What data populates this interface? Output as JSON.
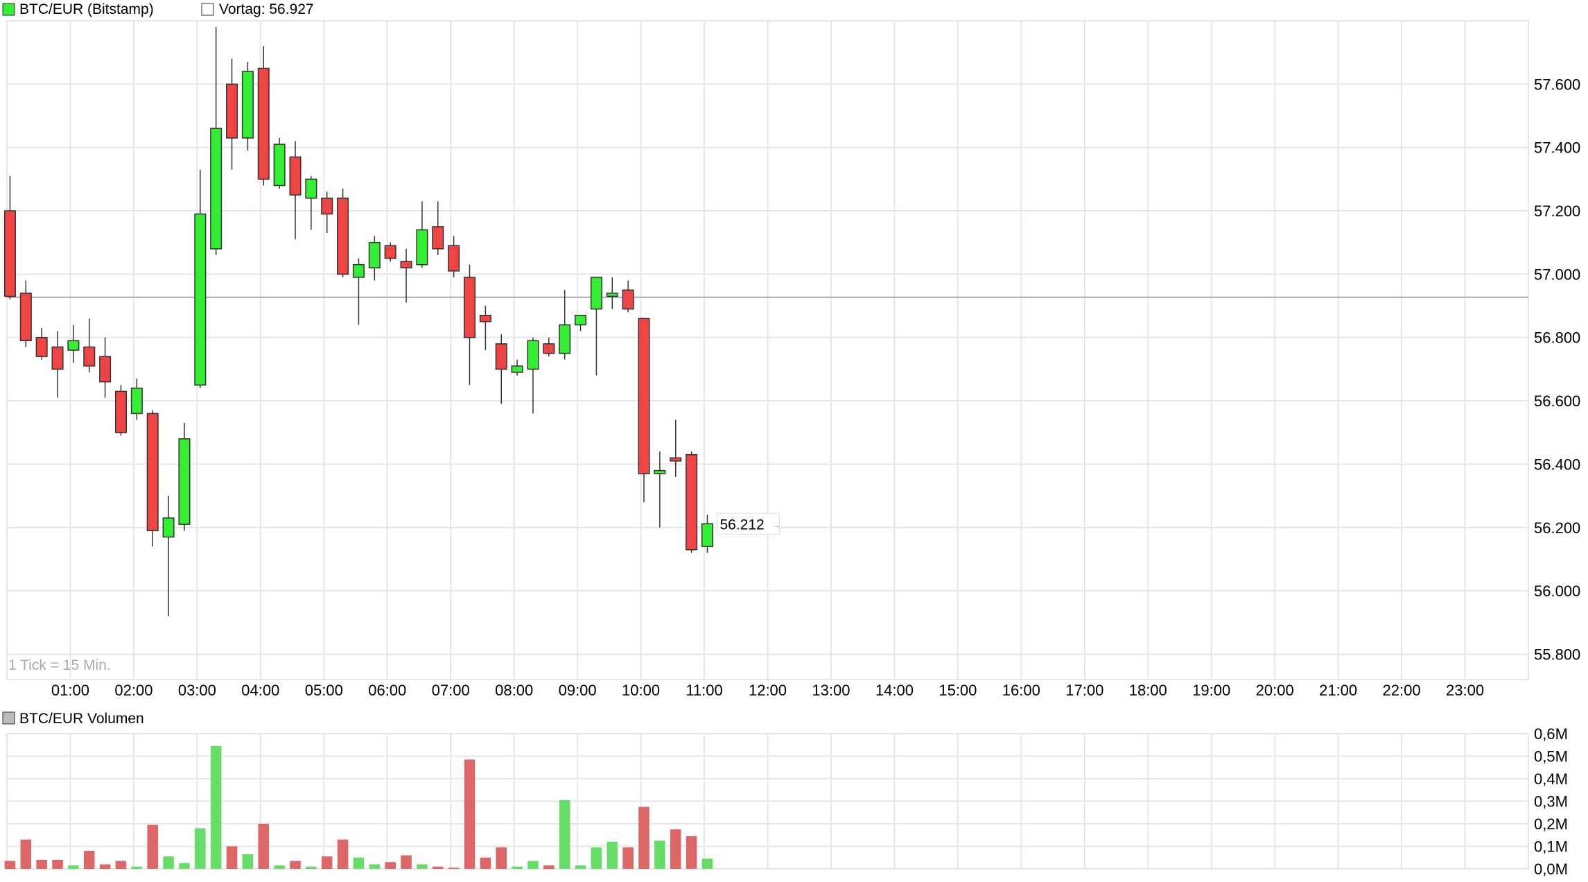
{
  "price_panel": {
    "legend_label": "BTC/EUR (Bitstamp)",
    "prev_close_label": "Vortag: 56.927",
    "tick_note": "1 Tick = 15 Min."
  },
  "volume_panel": {
    "legend_label": "BTC/EUR Volumen"
  },
  "colors": {
    "up": "#33ee33",
    "down": "#ee4444",
    "vol_up": "#66dd66",
    "vol_down": "#dd6666",
    "grid": "#e6e6e6",
    "prev_close_line": "#aaaaaa"
  },
  "chart_data": [
    {
      "type": "candlestick",
      "title": "BTC/EUR (Bitstamp)",
      "interval": "15 Min.",
      "x_ticks": [
        "01:00",
        "02:00",
        "03:00",
        "04:00",
        "05:00",
        "06:00",
        "07:00",
        "08:00",
        "09:00",
        "10:00",
        "11:00",
        "12:00",
        "13:00",
        "14:00",
        "15:00",
        "16:00",
        "17:00",
        "18:00",
        "19:00",
        "20:00",
        "21:00",
        "22:00",
        "23:00"
      ],
      "y_ticks": [
        "57.600",
        "57.400",
        "57.200",
        "57.000",
        "56.800",
        "56.600",
        "56.400",
        "56.200",
        "56.000",
        "55.800"
      ],
      "y_tick_values": [
        57600,
        57400,
        57200,
        57000,
        56800,
        56600,
        56400,
        56200,
        56000,
        55800
      ],
      "ylim": [
        55720,
        57800
      ],
      "x_range_hours": [
        0,
        24
      ],
      "prev_close": 56927,
      "last_price_label": "56.212",
      "candles": [
        {
          "t": "00:00",
          "o": 57200,
          "h": 57310,
          "l": 56920,
          "c": 56930
        },
        {
          "t": "00:15",
          "o": 56940,
          "h": 56980,
          "l": 56770,
          "c": 56790
        },
        {
          "t": "00:30",
          "o": 56800,
          "h": 56830,
          "l": 56730,
          "c": 56740
        },
        {
          "t": "00:45",
          "o": 56770,
          "h": 56820,
          "l": 56610,
          "c": 56700
        },
        {
          "t": "01:00",
          "o": 56760,
          "h": 56840,
          "l": 56720,
          "c": 56790
        },
        {
          "t": "01:15",
          "o": 56770,
          "h": 56860,
          "l": 56690,
          "c": 56710
        },
        {
          "t": "01:30",
          "o": 56740,
          "h": 56800,
          "l": 56610,
          "c": 56660
        },
        {
          "t": "01:45",
          "o": 56630,
          "h": 56650,
          "l": 56490,
          "c": 56500
        },
        {
          "t": "02:00",
          "o": 56560,
          "h": 56670,
          "l": 56540,
          "c": 56640
        },
        {
          "t": "02:15",
          "o": 56560,
          "h": 56570,
          "l": 56140,
          "c": 56190
        },
        {
          "t": "02:30",
          "o": 56170,
          "h": 56300,
          "l": 55920,
          "c": 56230
        },
        {
          "t": "02:45",
          "o": 56210,
          "h": 56530,
          "l": 56190,
          "c": 56480
        },
        {
          "t": "03:00",
          "o": 56650,
          "h": 57330,
          "l": 56640,
          "c": 57190
        },
        {
          "t": "03:15",
          "o": 57080,
          "h": 57780,
          "l": 57060,
          "c": 57460
        },
        {
          "t": "03:30",
          "o": 57600,
          "h": 57680,
          "l": 57330,
          "c": 57430
        },
        {
          "t": "03:45",
          "o": 57430,
          "h": 57670,
          "l": 57390,
          "c": 57640
        },
        {
          "t": "04:00",
          "o": 57650,
          "h": 57720,
          "l": 57280,
          "c": 57300
        },
        {
          "t": "04:15",
          "o": 57280,
          "h": 57430,
          "l": 57270,
          "c": 57410
        },
        {
          "t": "04:30",
          "o": 57370,
          "h": 57420,
          "l": 57110,
          "c": 57250
        },
        {
          "t": "04:45",
          "o": 57240,
          "h": 57310,
          "l": 57140,
          "c": 57300
        },
        {
          "t": "05:00",
          "o": 57240,
          "h": 57260,
          "l": 57130,
          "c": 57190
        },
        {
          "t": "05:15",
          "o": 57240,
          "h": 57270,
          "l": 56990,
          "c": 57000
        },
        {
          "t": "05:30",
          "o": 56990,
          "h": 57050,
          "l": 56840,
          "c": 57030
        },
        {
          "t": "05:45",
          "o": 57020,
          "h": 57120,
          "l": 56980,
          "c": 57100
        },
        {
          "t": "06:00",
          "o": 57090,
          "h": 57100,
          "l": 57040,
          "c": 57050
        },
        {
          "t": "06:15",
          "o": 57040,
          "h": 57080,
          "l": 56910,
          "c": 57020
        },
        {
          "t": "06:30",
          "o": 57030,
          "h": 57230,
          "l": 57020,
          "c": 57140
        },
        {
          "t": "06:45",
          "o": 57150,
          "h": 57230,
          "l": 57060,
          "c": 57080
        },
        {
          "t": "07:00",
          "o": 57090,
          "h": 57120,
          "l": 56990,
          "c": 57010
        },
        {
          "t": "07:15",
          "o": 56990,
          "h": 57030,
          "l": 56650,
          "c": 56800
        },
        {
          "t": "07:30",
          "o": 56870,
          "h": 56900,
          "l": 56760,
          "c": 56850
        },
        {
          "t": "07:45",
          "o": 56780,
          "h": 56810,
          "l": 56590,
          "c": 56700
        },
        {
          "t": "08:00",
          "o": 56690,
          "h": 56730,
          "l": 56680,
          "c": 56710
        },
        {
          "t": "08:15",
          "o": 56700,
          "h": 56800,
          "l": 56560,
          "c": 56790
        },
        {
          "t": "08:30",
          "o": 56780,
          "h": 56800,
          "l": 56740,
          "c": 56750
        },
        {
          "t": "08:45",
          "o": 56750,
          "h": 56950,
          "l": 56730,
          "c": 56840
        },
        {
          "t": "09:00",
          "o": 56840,
          "h": 56870,
          "l": 56820,
          "c": 56870
        },
        {
          "t": "09:15",
          "o": 56890,
          "h": 56990,
          "l": 56680,
          "c": 56990
        },
        {
          "t": "09:30",
          "o": 56930,
          "h": 56990,
          "l": 56890,
          "c": 56940
        },
        {
          "t": "09:45",
          "o": 56950,
          "h": 56980,
          "l": 56880,
          "c": 56890
        },
        {
          "t": "10:00",
          "o": 56860,
          "h": 56860,
          "l": 56280,
          "c": 56370
        },
        {
          "t": "10:15",
          "o": 56370,
          "h": 56440,
          "l": 56200,
          "c": 56380
        },
        {
          "t": "10:30",
          "o": 56420,
          "h": 56540,
          "l": 56360,
          "c": 56410
        },
        {
          "t": "10:45",
          "o": 56430,
          "h": 56440,
          "l": 56120,
          "c": 56130
        },
        {
          "t": "11:00",
          "o": 56140,
          "h": 56240,
          "l": 56120,
          "c": 56212
        }
      ]
    },
    {
      "type": "bar",
      "title": "BTC/EUR Volumen",
      "y_ticks": [
        "0,6M",
        "0,5M",
        "0,4M",
        "0,3M",
        "0,2M",
        "0,1M",
        "0,0M"
      ],
      "y_tick_values": [
        0.6,
        0.5,
        0.4,
        0.3,
        0.2,
        0.1,
        0.0
      ],
      "ylim": [
        0,
        0.6
      ],
      "unit": "M",
      "values": [
        0.035,
        0.13,
        0.04,
        0.04,
        0.015,
        0.08,
        0.02,
        0.035,
        0.01,
        0.195,
        0.055,
        0.025,
        0.18,
        0.545,
        0.1,
        0.065,
        0.2,
        0.015,
        0.035,
        0.01,
        0.055,
        0.13,
        0.05,
        0.02,
        0.03,
        0.06,
        0.02,
        0.01,
        0.005,
        0.485,
        0.05,
        0.095,
        0.01,
        0.035,
        0.015,
        0.305,
        0.015,
        0.095,
        0.12,
        0.095,
        0.275,
        0.125,
        0.175,
        0.145,
        0.045
      ]
    }
  ]
}
